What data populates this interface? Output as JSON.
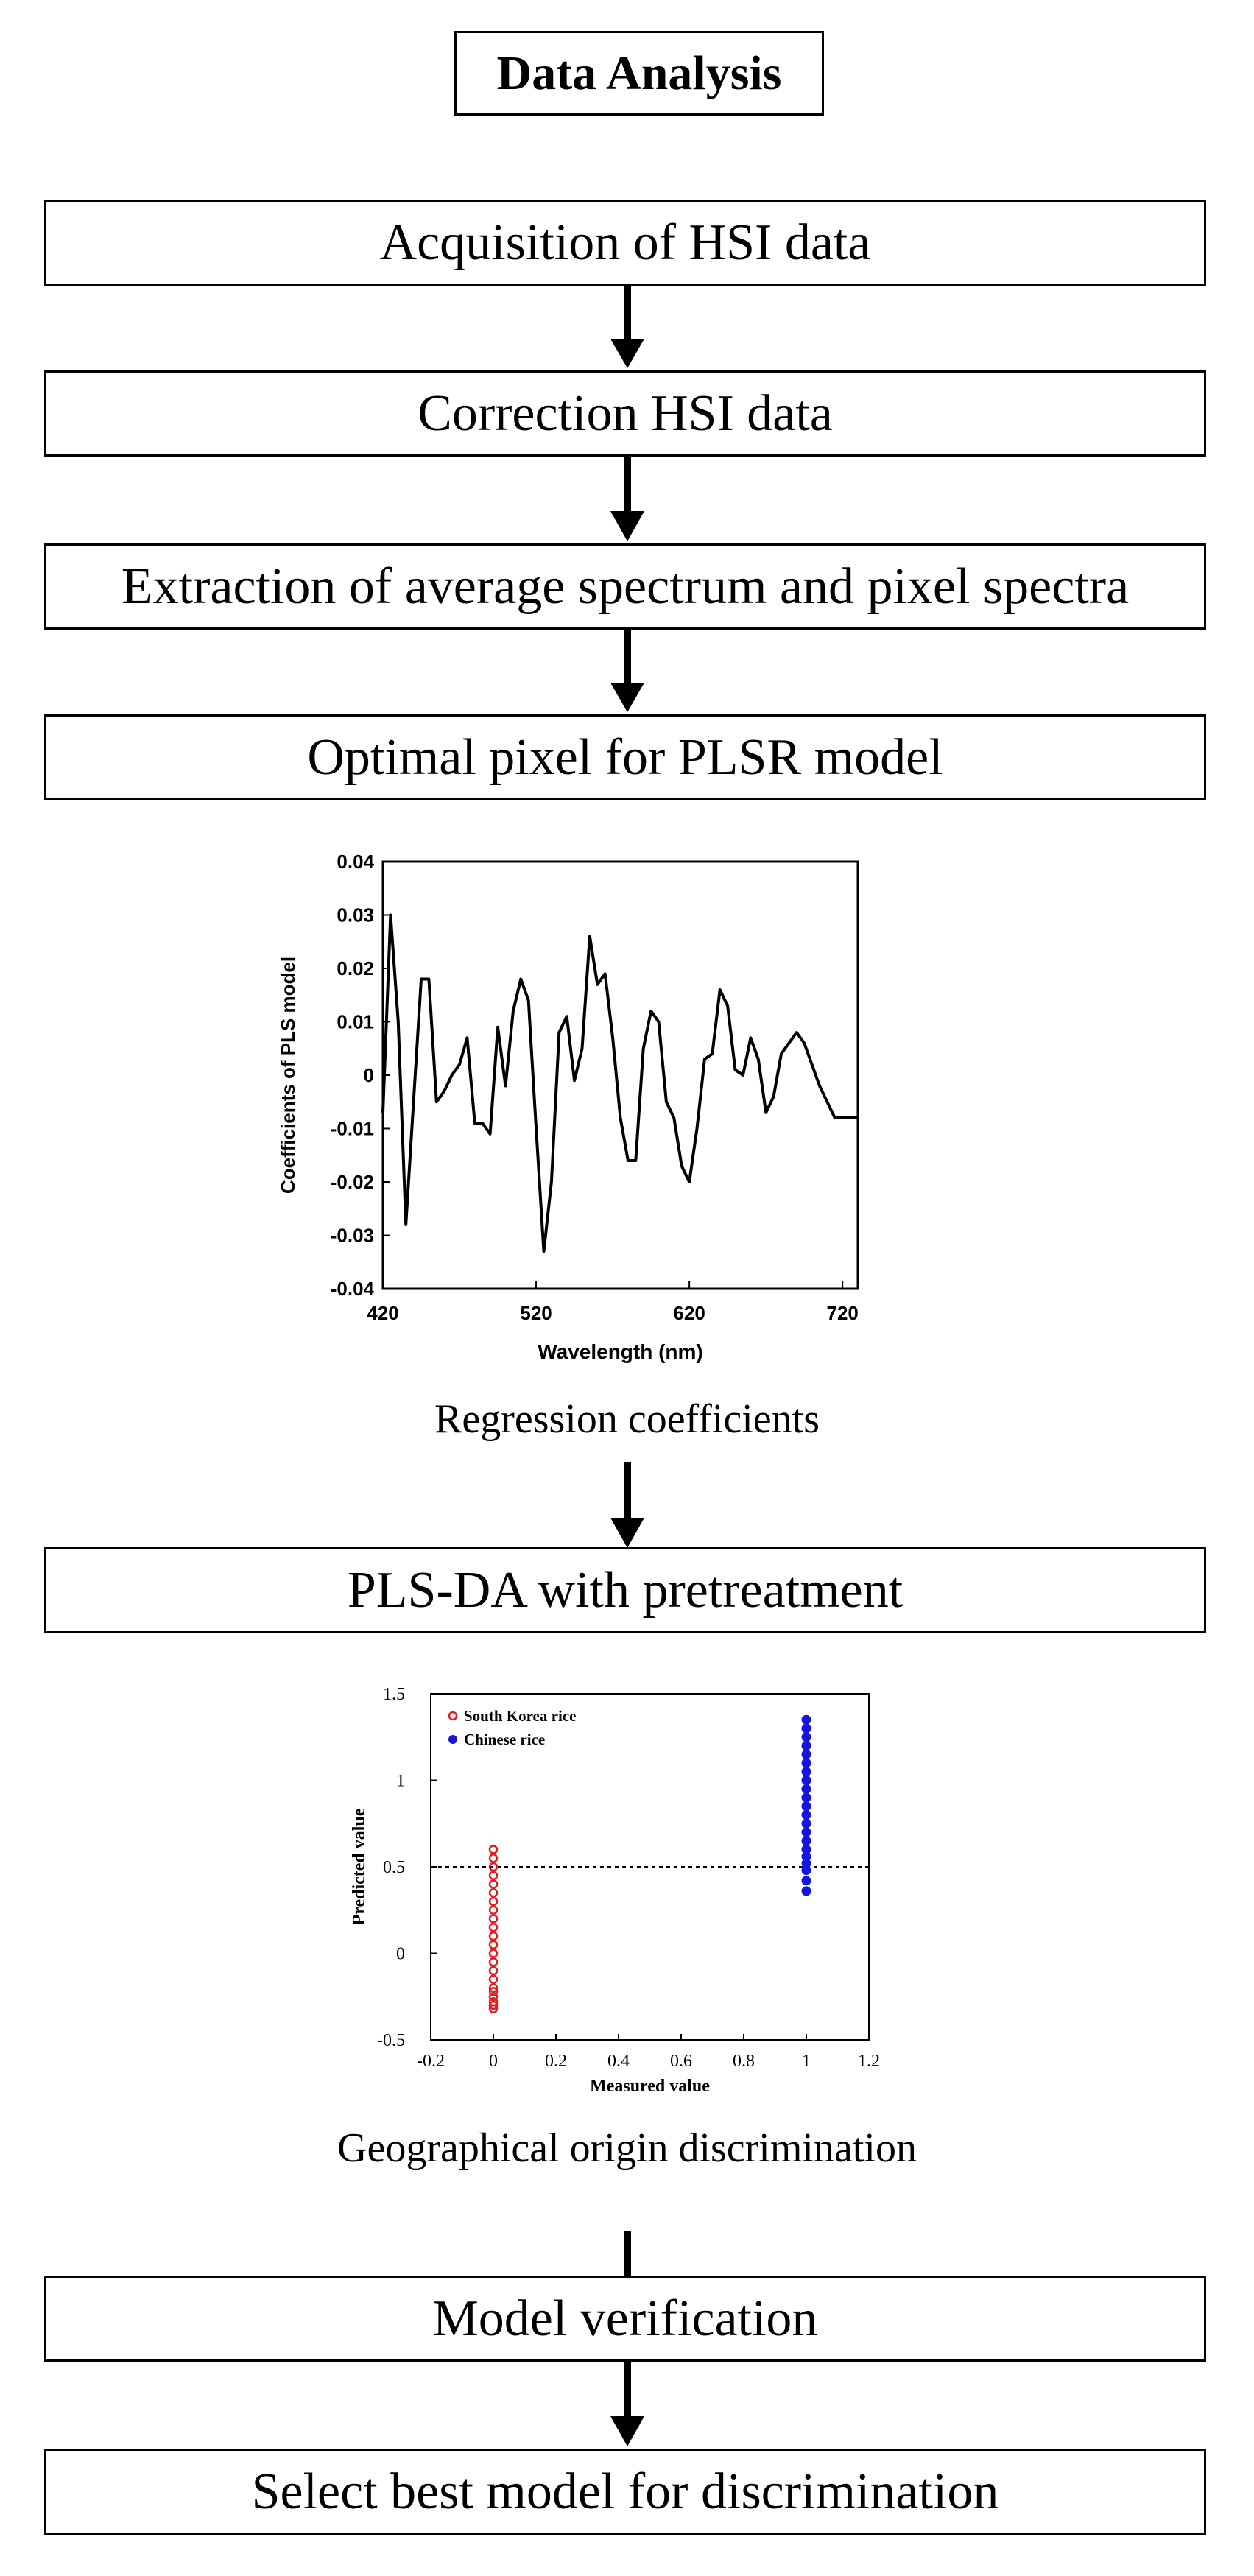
{
  "title": "Data Analysis",
  "steps": {
    "s1": "Acquisition of HSI data",
    "s2": "Correction HSI data",
    "s3": "Extraction of average spectrum and pixel spectra",
    "s4": "Optimal pixel for PLSR model",
    "s5": "PLS-DA with pretreatment",
    "s6": "Model verification",
    "s7": "Select best model for discrimination"
  },
  "captions": {
    "regression": "Regression coefficients",
    "discrimination": "Geographical origin discrimination"
  },
  "colors": {
    "line": "#000000",
    "korea": "#e41a1c",
    "china": "#1515e0"
  },
  "chart_data": [
    {
      "type": "line",
      "title": "",
      "xlabel": "Wavelength (nm)",
      "ylabel": "Coefficients of PLS model",
      "xlim": [
        420,
        730
      ],
      "ylim": [
        -0.04,
        0.04
      ],
      "x_ticks": [
        "420",
        "520",
        "620",
        "720"
      ],
      "y_ticks": [
        "-0.04",
        "-0.03",
        "-0.02",
        "-0.01",
        "0",
        "0.01",
        "0.02",
        "0.03",
        "0.04"
      ],
      "x": [
        420,
        425,
        430,
        435,
        440,
        445,
        450,
        455,
        460,
        465,
        470,
        475,
        480,
        485,
        490,
        495,
        500,
        505,
        510,
        515,
        520,
        525,
        530,
        535,
        540,
        545,
        550,
        555,
        560,
        565,
        570,
        575,
        580,
        585,
        590,
        595,
        600,
        605,
        610,
        615,
        620,
        625,
        630,
        635,
        640,
        645,
        650,
        655,
        660,
        665,
        670,
        675,
        680,
        685,
        690,
        695,
        700,
        705,
        710,
        715,
        720,
        725,
        730
      ],
      "series": [
        {
          "name": "Coefficients",
          "values": [
            -0.007,
            0.03,
            0.01,
            -0.028,
            -0.005,
            0.018,
            0.018,
            -0.005,
            -0.003,
            0,
            0.002,
            0.007,
            -0.009,
            -0.009,
            -0.011,
            0.009,
            -0.002,
            0.012,
            0.018,
            0.014,
            -0.01,
            -0.033,
            -0.02,
            0.008,
            0.011,
            -0.001,
            0.005,
            0.026,
            0.017,
            0.019,
            0.007,
            -0.008,
            -0.016,
            -0.016,
            0.005,
            0.012,
            0.01,
            -0.005,
            -0.008,
            -0.017,
            -0.02,
            -0.01,
            0.003,
            0.004,
            0.016,
            0.013,
            0.001,
            0.0,
            0.007,
            0.003,
            -0.007,
            -0.004,
            0.004,
            0.006,
            0.008,
            0.006,
            0.002,
            -0.002,
            -0.005,
            -0.008,
            -0.008,
            -0.008,
            -0.008
          ]
        }
      ]
    },
    {
      "type": "scatter",
      "title": "",
      "xlabel": "Measured value",
      "ylabel": "Predicted value",
      "xlim": [
        -0.2,
        1.2
      ],
      "ylim": [
        -0.5,
        1.5
      ],
      "x_ticks": [
        "-0.2",
        "0",
        "0.2",
        "0.4",
        "0.6",
        "0.8",
        "1",
        "1.2"
      ],
      "y_ticks": [
        "-0.5",
        "0",
        "0.5",
        "1",
        "1.5"
      ],
      "threshold": 0.5,
      "series": [
        {
          "name": "South Korea rice",
          "marker": "open-circle",
          "x": 0,
          "values": [
            -0.32,
            -0.3,
            -0.28,
            -0.25,
            -0.22,
            -0.2,
            -0.15,
            -0.1,
            -0.05,
            0,
            0.05,
            0.1,
            0.15,
            0.2,
            0.25,
            0.3,
            0.35,
            0.4,
            0.45,
            0.5,
            0.55,
            0.6
          ]
        },
        {
          "name": "Chinese rice",
          "marker": "filled-circle",
          "x": 1,
          "values": [
            0.36,
            0.42,
            0.48,
            0.52,
            0.56,
            0.6,
            0.65,
            0.7,
            0.75,
            0.8,
            0.85,
            0.9,
            0.95,
            1.0,
            1.05,
            1.1,
            1.15,
            1.2,
            1.25,
            1.3,
            1.35
          ]
        }
      ]
    }
  ]
}
